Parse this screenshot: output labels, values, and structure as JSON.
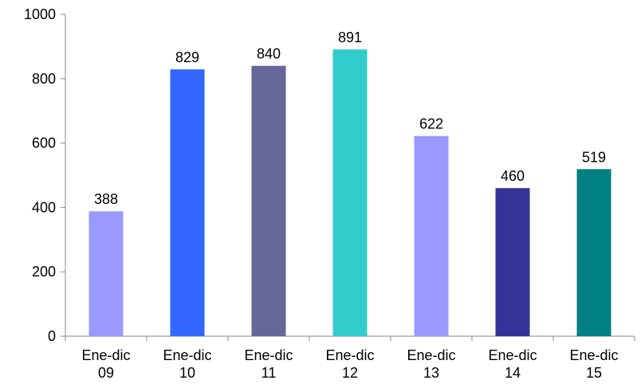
{
  "chart_data": {
    "type": "bar",
    "title": "",
    "xlabel": "",
    "ylabel": "",
    "ylim": [
      0,
      1000
    ],
    "yticks": [
      0,
      200,
      400,
      600,
      800,
      1000
    ],
    "grid": false,
    "categories": [
      {
        "line1": "Ene-dic",
        "line2": "09"
      },
      {
        "line1": "Ene-dic",
        "line2": "10"
      },
      {
        "line1": "Ene-dic",
        "line2": "11"
      },
      {
        "line1": "Ene-dic",
        "line2": "12"
      },
      {
        "line1": "Ene-dic",
        "line2": "13"
      },
      {
        "line1": "Ene-dic",
        "line2": "14"
      },
      {
        "line1": "Ene-dic",
        "line2": "15"
      }
    ],
    "values": [
      388,
      829,
      840,
      891,
      622,
      460,
      519
    ],
    "colors": [
      "#9999FF",
      "#3366FF",
      "#666699",
      "#33CCCC",
      "#9999FF",
      "#333399",
      "#008080"
    ]
  }
}
